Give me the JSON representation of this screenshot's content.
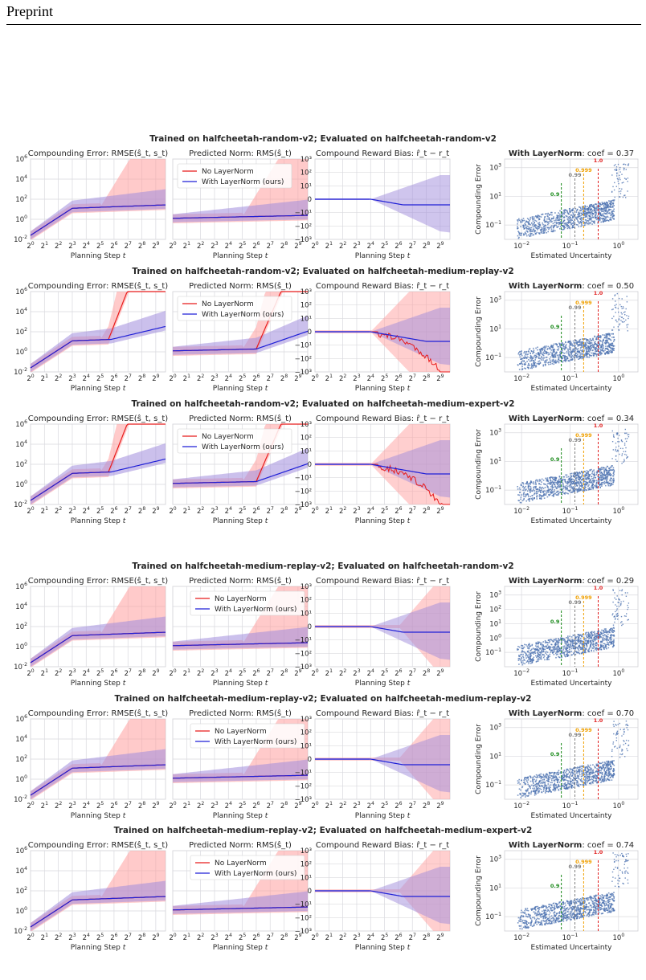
{
  "header": {
    "running_head": "Preprint"
  },
  "colors": {
    "no_layernorm": "#e81b1b",
    "with_layernorm": "#1f1fd6",
    "band_red": "#ff9f9f",
    "band_purple": "#a08cdc",
    "scatter": "#4c72b0",
    "grid": "#d9d9de",
    "q09": "#1a8a1a",
    "q099": "#808080",
    "q0999": "#f0a000",
    "q10": "#e02020"
  },
  "panel_titles": {
    "compounding": "Compounding Error: RMSE(ŝ_t, s_t)",
    "predicted_norm": "Predicted Norm: RMS(ŝ_t)",
    "reward_bias": "Compound Reward Bias: r̂_t − r_t",
    "layernorm_prefix": "With LayerNorm",
    "coef_prefix": ": coef = "
  },
  "axes": {
    "planning_xlabel": "Planning Step",
    "planning_xlabel_var": "t",
    "uncertainty_xlabel": "Estimated Uncertainty",
    "compounding_ylabel": "Compounding Error"
  },
  "legend": {
    "no_layernorm": "No LayerNorm",
    "with_layernorm": "With LayerNorm (ours)"
  },
  "ticks": {
    "x_exps": [
      "0",
      "1",
      "2",
      "3",
      "4",
      "5",
      "6",
      "7",
      "8",
      "9"
    ],
    "left_y_exps": [
      "6",
      "4",
      "2",
      "0",
      "-2"
    ],
    "bias_y": [
      "10³",
      "10²",
      "10¹",
      "0",
      "−10¹",
      "−10²",
      "−10³"
    ],
    "unc_x_exps": [
      "-2",
      "-1",
      "0"
    ]
  },
  "rows": [
    {
      "title": "Trained on halfcheetah-random-v2; Evaluated on halfcheetah-random-v2",
      "coef": "0.37",
      "scatter_y_exps": [
        "3",
        "1",
        "-1"
      ]
    },
    {
      "title": "Trained on halfcheetah-random-v2; Evaluated on halfcheetah-medium-replay-v2",
      "coef": "0.50",
      "scatter_y_exps": [
        "3",
        "1",
        "-1"
      ]
    },
    {
      "title": "Trained on halfcheetah-random-v2; Evaluated on halfcheetah-medium-expert-v2",
      "coef": "0.34",
      "scatter_y_exps": [
        "3",
        "1",
        "-1"
      ]
    },
    {
      "title": "Trained on halfcheetah-medium-replay-v2; Evaluated on halfcheetah-random-v2",
      "coef": "0.29",
      "scatter_y_exps": [
        "3",
        "2",
        "1",
        "0",
        "-1"
      ]
    },
    {
      "title": "Trained on halfcheetah-medium-replay-v2; Evaluated on halfcheetah-medium-replay-v2",
      "coef": "0.70",
      "scatter_y_exps": [
        "3",
        "1",
        "-1"
      ]
    },
    {
      "title": "Trained on halfcheetah-medium-replay-v2; Evaluated on halfcheetah-medium-expert-v2",
      "coef": "0.74",
      "scatter_y_exps": [
        "3",
        "1",
        "-1"
      ]
    }
  ],
  "quantiles": [
    {
      "label": "0.9",
      "color": "#1a8a1a",
      "log_x": -1.18
    },
    {
      "label": "0.99",
      "color": "#808080",
      "log_x": -0.9
    },
    {
      "label": "0.999",
      "color": "#f0a000",
      "log_x": -0.72
    },
    {
      "label": "1.0",
      "color": "#e02020",
      "log_x": -0.42
    }
  ]
}
